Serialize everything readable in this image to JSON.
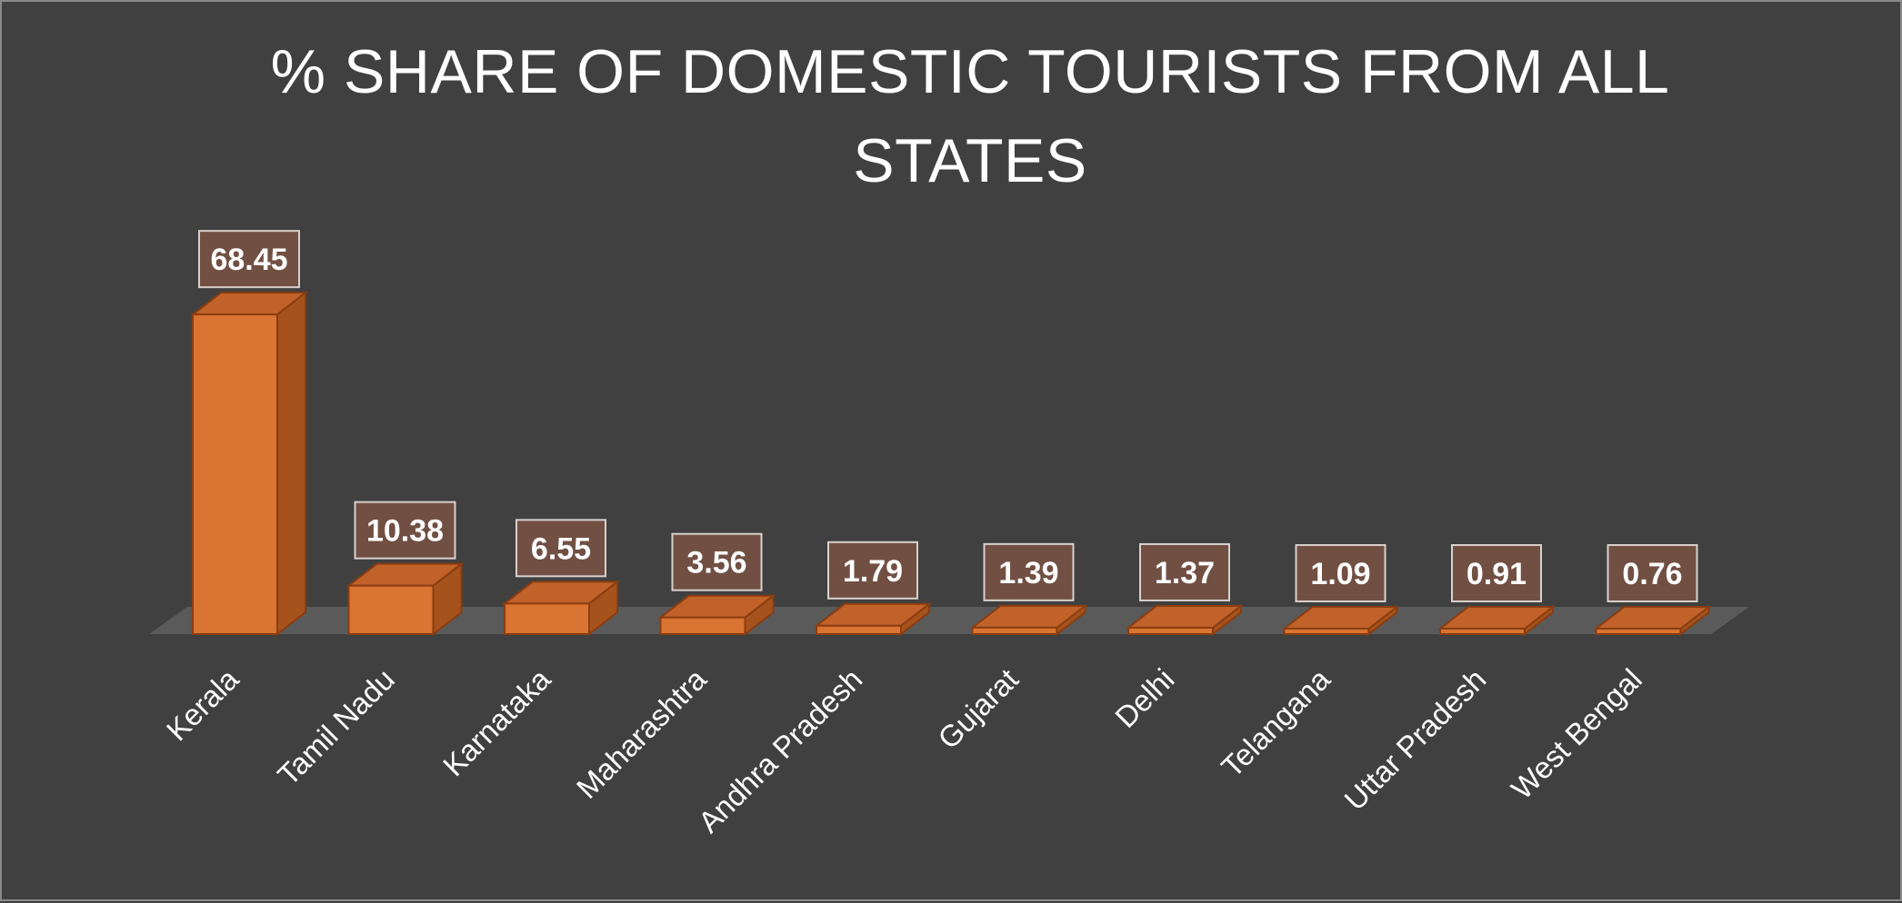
{
  "chart_data": {
    "type": "bar",
    "title": "% SHARE OF DOMESTIC TOURISTS FROM ALL STATES",
    "categories": [
      "Kerala",
      "Tamil Nadu",
      "Karnataka",
      "Maharashtra",
      "Andhra Pradesh",
      "Gujarat",
      "Delhi",
      "Telangana",
      "Uttar Pradesh",
      "West Bengal"
    ],
    "values": [
      68.45,
      10.38,
      6.55,
      3.56,
      1.79,
      1.39,
      1.37,
      1.09,
      0.91,
      0.76
    ],
    "data_labels": [
      "68.45",
      "10.38",
      "6.55",
      "3.56",
      "1.79",
      "1.39",
      "1.37",
      "1.09",
      "0.91",
      "0.76"
    ],
    "xlabel": "",
    "ylabel": "",
    "ylim": [
      0,
      70
    ],
    "grid": false,
    "legend": "none",
    "style": "3d-column"
  },
  "colors": {
    "background": "#404040",
    "bar_front": "#d97432",
    "bar_side": "#a6521c",
    "bar_top": "#c0622a",
    "bar_edge": "#8a3d10",
    "floor": "#5a5a5a",
    "text": "#ffffff",
    "label_box_fill": "#7a5444",
    "label_box_stroke": "#d8d0cc"
  }
}
